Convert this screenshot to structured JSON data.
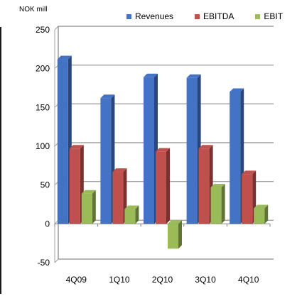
{
  "chart_data": {
    "type": "bar",
    "unit_label": "NOK mill",
    "categories": [
      "4Q09",
      "1Q10",
      "2Q10",
      "3Q10",
      "4Q10"
    ],
    "series": [
      {
        "name": "Revenues",
        "color": "#4472C4",
        "values": [
          212,
          162,
          189,
          188,
          170
        ]
      },
      {
        "name": "EBITDA",
        "color": "#C0504D",
        "values": [
          97,
          67,
          93,
          97,
          64
        ]
      },
      {
        "name": "EBIT",
        "color": "#9BBB59",
        "values": [
          39,
          19,
          -32,
          47,
          20
        ]
      }
    ],
    "yticks": [
      "250",
      "200",
      "150",
      "100",
      "50",
      "0",
      "-50"
    ],
    "ylim": [
      -50,
      250
    ],
    "grid": true,
    "legend_position": "top-right"
  }
}
